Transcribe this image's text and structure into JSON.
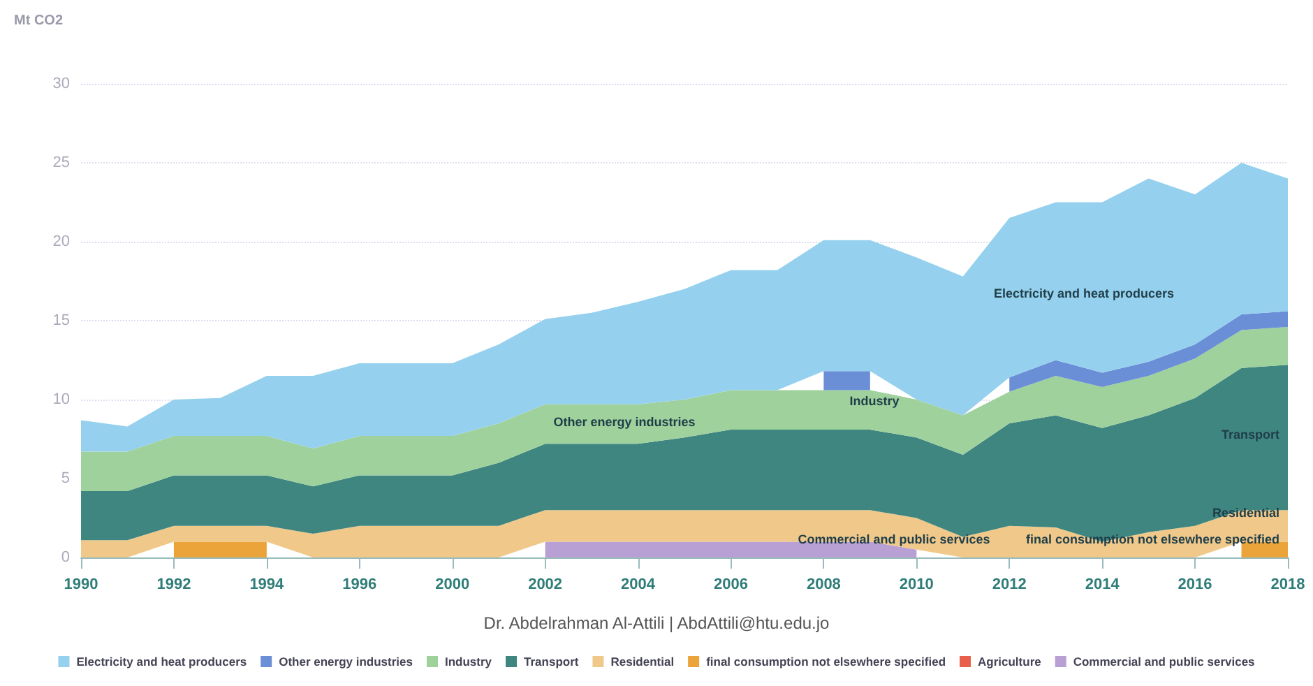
{
  "chart_data": {
    "type": "area",
    "stacked": true,
    "ylabel": "Mt CO2",
    "ylim": [
      0,
      30
    ],
    "yticks": [
      0,
      5,
      10,
      15,
      20,
      25,
      30
    ],
    "grid": "y",
    "legend": "bottom",
    "marker": "none",
    "categories": [
      "1990",
      null,
      "1992",
      null,
      "1994",
      null,
      "1996",
      null,
      "2000",
      null,
      "2002",
      null,
      "2004",
      null,
      "2006",
      null,
      "2008",
      null,
      "2010",
      null,
      "2012",
      null,
      "2014",
      null,
      "2016",
      null,
      "2018"
    ],
    "series": [
      {
        "name": "Commercial and public services",
        "color": "#b9a0d4",
        "values": [
          null,
          null,
          null,
          null,
          null,
          null,
          null,
          null,
          null,
          null,
          1,
          1,
          1,
          1,
          1,
          1,
          1,
          1,
          0.5,
          null,
          null,
          null,
          null,
          null,
          null,
          null,
          null
        ]
      },
      {
        "name": "Agriculture",
        "color": "#e8604c",
        "values": [
          null,
          null,
          null,
          null,
          null,
          null,
          null,
          null,
          null,
          null,
          null,
          null,
          null,
          null,
          null,
          null,
          null,
          null,
          null,
          null,
          null,
          null,
          null,
          null,
          null,
          null,
          null
        ]
      },
      {
        "name": "final consumption not elsewhere specified",
        "color": "#eaa43a",
        "values": [
          null,
          null,
          1,
          1,
          1,
          null,
          null,
          null,
          null,
          null,
          null,
          null,
          null,
          null,
          null,
          null,
          null,
          null,
          null,
          null,
          null,
          null,
          null,
          null,
          null,
          1,
          1
        ]
      },
      {
        "name": "Residential",
        "color": "#f0c98a",
        "values": [
          1.1,
          1.1,
          1,
          1,
          1,
          1.5,
          2,
          2,
          2,
          2,
          2,
          2,
          2,
          2,
          2,
          2,
          2,
          2,
          2,
          1.3,
          2,
          1.9,
          1,
          1.6,
          2,
          2,
          2
        ]
      },
      {
        "name": "Transport",
        "color": "#3f8680",
        "values": [
          3.1,
          3.1,
          3.2,
          3.2,
          3.2,
          3,
          3.2,
          3.2,
          3.2,
          4,
          4.2,
          4.2,
          4.2,
          4.6,
          5.1,
          5.1,
          5.1,
          5.1,
          5.1,
          5.2,
          6.5,
          7.1,
          7.2,
          7.4,
          8.1,
          9,
          9.2
        ]
      },
      {
        "name": "Industry",
        "color": "#9fd19c",
        "values": [
          2.5,
          2.5,
          2.5,
          2.5,
          2.5,
          2.4,
          2.5,
          2.5,
          2.5,
          2.5,
          2.5,
          2.5,
          2.5,
          2.4,
          2.5,
          2.5,
          2.5,
          2.5,
          2.4,
          2.5,
          2,
          2.5,
          2.6,
          2.5,
          2.5,
          2.4,
          2.4
        ]
      },
      {
        "name": "Other energy industries",
        "color": "#6b8fd6",
        "values": [
          null,
          null,
          null,
          null,
          null,
          null,
          null,
          null,
          null,
          null,
          null,
          null,
          null,
          null,
          null,
          null,
          1.2,
          1.2,
          null,
          null,
          0.9,
          1,
          0.9,
          0.9,
          0.9,
          1,
          1
        ]
      },
      {
        "name": "Electricity and heat producers",
        "color": "#95d1ee",
        "values": [
          2,
          1.6,
          2.3,
          2.4,
          3.8,
          4.6,
          4.6,
          4.6,
          4.6,
          5,
          5.4,
          5.8,
          6.5,
          7,
          7.6,
          7.6,
          8.3,
          8.3,
          9,
          8.8,
          10.1,
          10,
          10.8,
          11.6,
          9.5,
          9.6,
          8.4
        ]
      }
    ],
    "annotations": [
      "Electricity and heat producers",
      "Other energy industries",
      "Industry",
      "Transport",
      "Residential",
      "Commercial and public services",
      "final consumption not elsewhere specified",
      "Dr. Abdelrahman Al-Attili | AbdAttili@htu.edu.jo"
    ]
  }
}
